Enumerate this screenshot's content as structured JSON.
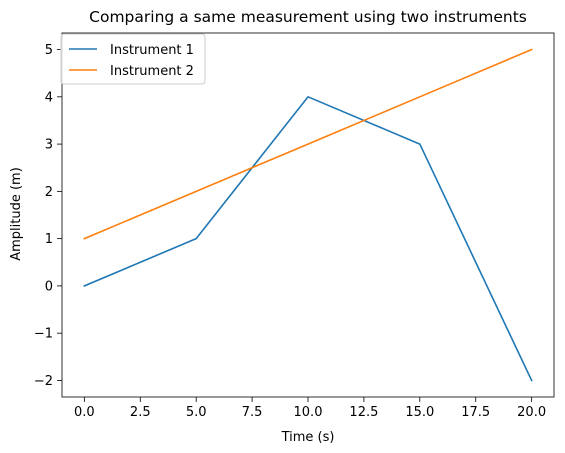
{
  "chart_data": {
    "type": "line",
    "title": "Comparing a same measurement using two instruments",
    "xlabel": "Time (s)",
    "ylabel": "Amplitude (m)",
    "xlim": [
      -1,
      21
    ],
    "ylim": [
      -2.35,
      5.35
    ],
    "xticks": [
      0,
      2.5,
      5,
      7.5,
      10,
      12.5,
      15,
      17.5,
      20
    ],
    "xtick_labels": [
      "0.0",
      "2.5",
      "5.0",
      "7.5",
      "10.0",
      "12.5",
      "15.0",
      "17.5",
      "20.0"
    ],
    "yticks": [
      -2,
      -1,
      0,
      1,
      2,
      3,
      4,
      5
    ],
    "ytick_labels": [
      "−2",
      "−1",
      "0",
      "1",
      "2",
      "3",
      "4",
      "5"
    ],
    "grid": false,
    "legend_position": "top-left",
    "series": [
      {
        "name": "Instrument 1",
        "color": "#1f77b4",
        "x": [
          0,
          5,
          10,
          15,
          20
        ],
        "y": [
          0,
          1,
          4,
          3,
          -2
        ]
      },
      {
        "name": "Instrument 2",
        "color": "#ff7f0e",
        "x": [
          0,
          5,
          10,
          15,
          20
        ],
        "y": [
          1,
          2,
          3,
          4,
          5
        ]
      }
    ]
  }
}
